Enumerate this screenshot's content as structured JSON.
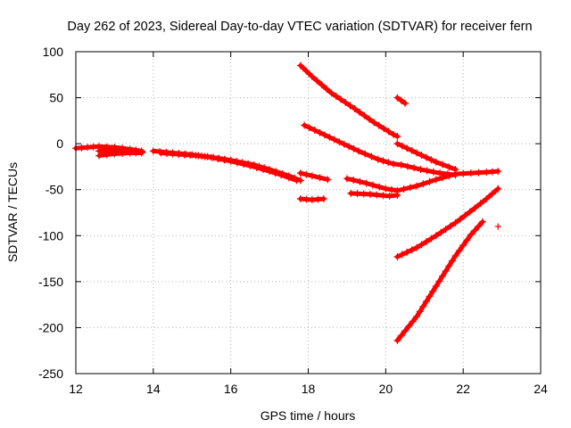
{
  "chart_data": {
    "type": "scatter",
    "title": "Day 262 of 2023, Sidereal Day-to-day VTEC variation (SDTVAR) for receiver fern",
    "xlabel": "GPS time / hours",
    "ylabel": "SDTVAR / TECUs",
    "xlim": [
      12,
      24
    ],
    "ylim": [
      -250,
      100
    ],
    "xticks": [
      "12",
      "14",
      "16",
      "18",
      "20",
      "22",
      "24"
    ],
    "yticks": [
      "100",
      "50",
      "0",
      "-50",
      "-100",
      "-150",
      "-200",
      "-250"
    ],
    "grid": true,
    "marker": "+",
    "color": "#ff0000",
    "series": [
      {
        "segments": [
          [
            [
              12.0,
              -5
            ],
            [
              12.3,
              -4
            ],
            [
              12.6,
              -3
            ],
            [
              13.0,
              -4
            ],
            [
              13.4,
              -6
            ],
            [
              13.7,
              -8
            ]
          ],
          [
            [
              14.0,
              -8
            ],
            [
              14.5,
              -10
            ],
            [
              15.0,
              -12
            ],
            [
              15.5,
              -15
            ],
            [
              16.0,
              -19
            ],
            [
              16.5,
              -24
            ],
            [
              17.0,
              -30
            ],
            [
              17.3,
              -34
            ],
            [
              17.5,
              -37
            ],
            [
              17.7,
              -40
            ]
          ]
        ]
      },
      {
        "segments": [
          [
            [
              12.6,
              -8
            ],
            [
              13.0,
              -8
            ],
            [
              13.4,
              -8
            ],
            [
              13.7,
              -9
            ]
          ],
          [
            [
              14.2,
              -10
            ],
            [
              14.8,
              -12
            ],
            [
              15.4,
              -14
            ],
            [
              16.0,
              -18
            ],
            [
              16.6,
              -23
            ],
            [
              17.0,
              -28
            ],
            [
              17.5,
              -35
            ],
            [
              17.8,
              -40
            ]
          ]
        ]
      },
      {
        "segments": [
          [
            [
              12.6,
              -13
            ],
            [
              13.0,
              -11
            ],
            [
              13.4,
              -10
            ],
            [
              13.7,
              -10
            ]
          ]
        ]
      },
      {
        "segments": [
          [
            [
              17.8,
              85
            ],
            [
              18.1,
              73
            ],
            [
              18.6,
              55
            ],
            [
              19.2,
              38
            ],
            [
              19.7,
              23
            ],
            [
              20.2,
              10
            ],
            [
              20.3,
              8
            ]
          ]
        ]
      },
      {
        "segments": [
          [
            [
              20.3,
              50
            ],
            [
              20.4,
              47
            ],
            [
              20.5,
              44
            ]
          ]
        ]
      },
      {
        "segments": [
          [
            [
              17.9,
              20
            ],
            [
              18.3,
              12
            ],
            [
              18.8,
              2
            ],
            [
              19.3,
              -8
            ],
            [
              19.8,
              -17
            ],
            [
              20.2,
              -22
            ],
            [
              20.4,
              -23
            ],
            [
              20.9,
              -28
            ],
            [
              21.4,
              -32
            ],
            [
              21.8,
              -34
            ]
          ]
        ]
      },
      {
        "segments": [
          [
            [
              20.3,
              0
            ],
            [
              20.8,
              -10
            ],
            [
              21.3,
              -20
            ],
            [
              21.8,
              -28
            ]
          ]
        ]
      },
      {
        "segments": [
          [
            [
              17.8,
              -32
            ],
            [
              18.1,
              -35
            ],
            [
              18.5,
              -39
            ]
          ],
          [
            [
              19.0,
              -38
            ],
            [
              19.5,
              -43
            ],
            [
              20.0,
              -49
            ],
            [
              20.3,
              -51
            ],
            [
              20.8,
              -46
            ],
            [
              21.3,
              -39
            ],
            [
              21.8,
              -33
            ]
          ]
        ]
      },
      {
        "segments": [
          [
            [
              17.8,
              -60
            ],
            [
              18.1,
              -61
            ],
            [
              18.4,
              -60
            ]
          ],
          [
            [
              19.1,
              -54
            ],
            [
              19.6,
              -55
            ],
            [
              20.1,
              -57
            ],
            [
              20.3,
              -56
            ]
          ]
        ]
      },
      {
        "segments": [
          [
            [
              21.8,
              -33
            ],
            [
              22.2,
              -32
            ],
            [
              22.6,
              -31
            ],
            [
              22.9,
              -30
            ]
          ]
        ]
      },
      {
        "segments": [
          [
            [
              20.3,
              -123
            ],
            [
              20.8,
              -113
            ],
            [
              21.3,
              -100
            ],
            [
              21.8,
              -86
            ],
            [
              22.3,
              -70
            ],
            [
              22.6,
              -60
            ],
            [
              22.9,
              -49
            ]
          ]
        ]
      },
      {
        "segments": [
          [
            [
              20.3,
              -214
            ],
            [
              20.8,
              -188
            ],
            [
              21.3,
              -155
            ],
            [
              21.8,
              -122
            ],
            [
              22.2,
              -99
            ],
            [
              22.5,
              -85
            ]
          ]
        ]
      },
      {
        "segments": [
          [
            [
              22.9,
              -90
            ]
          ]
        ]
      }
    ]
  }
}
